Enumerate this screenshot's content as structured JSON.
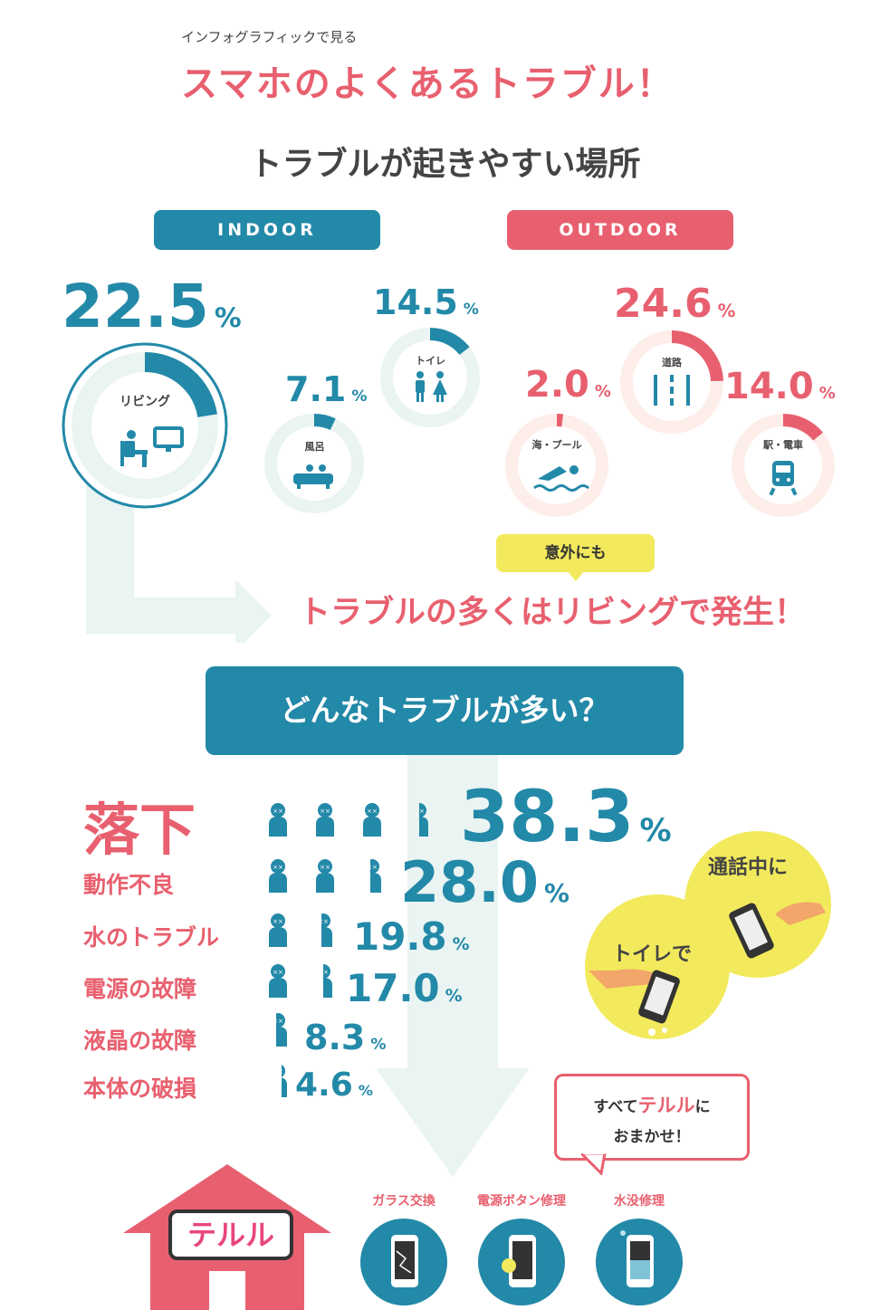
{
  "header": {
    "subtitle": "インフォグラフィックで見る",
    "title": "スマホのよくあるトラブル！"
  },
  "places": {
    "heading": "トラブルが起きやすい場所",
    "indoor_label": "INDOOR",
    "outdoor_label": "OUTDOOR",
    "indoor": [
      {
        "name": "リビング",
        "value": "22.5",
        "fraction": 0.225,
        "icon": "living-person-tv-icon"
      },
      {
        "name": "風呂",
        "value": "7.1",
        "fraction": 0.071,
        "icon": "bath-icon"
      },
      {
        "name": "トイレ",
        "value": "14.5",
        "fraction": 0.145,
        "icon": "toilet-people-icon"
      }
    ],
    "outdoor": [
      {
        "name": "海・プール",
        "value": "2.0",
        "fraction": 0.02,
        "icon": "swimmer-icon"
      },
      {
        "name": "道路",
        "value": "24.6",
        "fraction": 0.246,
        "icon": "road-icon"
      },
      {
        "name": "駅・電車",
        "value": "14.0",
        "fraction": 0.14,
        "icon": "train-icon"
      }
    ],
    "percent": "%",
    "bubble": "意外にも",
    "conclusion": "トラブルの多くはリビングで発生！"
  },
  "troubles": {
    "heading": "どんなトラブルが多い？",
    "items": [
      {
        "name": "落下",
        "value": "38.3",
        "people": 3.5
      },
      {
        "name": "動作不良",
        "value": "28.0",
        "people": 2.6
      },
      {
        "name": "水のトラブル",
        "value": "19.8",
        "people": 1.6
      },
      {
        "name": "電源の故障",
        "value": "17.0",
        "people": 1.5
      },
      {
        "name": "液晶の故障",
        "value": "8.3",
        "people": 0.6
      },
      {
        "name": "本体の破損",
        "value": "4.6",
        "people": 0.3
      }
    ],
    "scenes": {
      "call": "通話中に",
      "toilet": "トイレで"
    }
  },
  "footer": {
    "speech_part1": "すべて",
    "speech_brand": "テルル",
    "speech_part2": "に",
    "speech_line2": "おまかせ！",
    "brand_logo": "テルル",
    "services": [
      {
        "label": "ガラス交換",
        "icon": "cracked-phone-icon"
      },
      {
        "label": "電源ボタン修理",
        "icon": "phone-power-icon"
      },
      {
        "label": "水没修理",
        "icon": "water-phone-icon"
      }
    ]
  },
  "colors": {
    "teal": "#2389a8",
    "pink": "#e8606f",
    "yellow": "#f2ea5c",
    "light_track": "#eaf4f2",
    "peach_track": "#fdeee9"
  }
}
